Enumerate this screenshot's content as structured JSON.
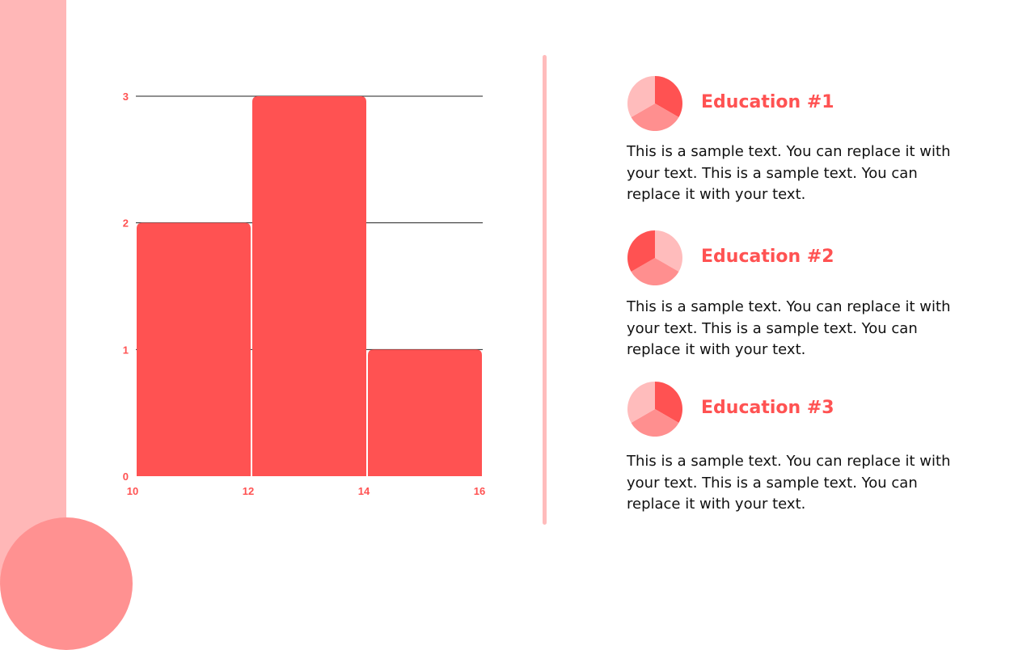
{
  "colors": {
    "accent": "#ff5252",
    "accent_mid": "#ff8f8f",
    "accent_light": "#ffbcbc",
    "side_band": "#ffb7b7",
    "corner_circle": "#ff9191",
    "divider": "#ffbcbc",
    "grid": "#222222",
    "text": "#111111"
  },
  "chart_data": {
    "type": "bar",
    "subtype": "histogram",
    "bins": [
      [
        10,
        12
      ],
      [
        12,
        14
      ],
      [
        14,
        16
      ]
    ],
    "values": [
      2,
      3,
      1
    ],
    "x_ticks": [
      10,
      12,
      14,
      16
    ],
    "y_ticks": [
      0,
      1,
      2,
      3
    ],
    "xlim": [
      10,
      16
    ],
    "ylim": [
      0,
      3
    ],
    "title": "",
    "xlabel": "",
    "ylabel": "",
    "grid": "horizontal",
    "legend": "none",
    "bar_color": "#ff5252"
  },
  "education": [
    {
      "title": "Education #1",
      "body": "This is a sample text. You can replace it with your text. This is a sample text. You can replace it with your text.",
      "pie": {
        "values": [
          33.3,
          33.3,
          33.3
        ],
        "start_deg": 0,
        "colors": [
          "#ff5252",
          "#ff8f8f",
          "#ffbcbc"
        ]
      }
    },
    {
      "title": "Education #2",
      "body": "This is a sample text. You can replace it with your text. This is a sample text. You can replace it with your text.",
      "pie": {
        "values": [
          33.3,
          33.3,
          33.3
        ],
        "start_deg": 0,
        "colors": [
          "#ffbcbc",
          "#ff8f8f",
          "#ff5252"
        ]
      }
    },
    {
      "title": "Education #3",
      "body": "This is a sample text. You can replace it with your text. This is a sample text. You can replace it with your text.",
      "pie": {
        "values": [
          33.3,
          33.3,
          33.3
        ],
        "start_deg": 0,
        "colors": [
          "#ff5252",
          "#ff8f8f",
          "#ffbcbc"
        ]
      }
    }
  ]
}
